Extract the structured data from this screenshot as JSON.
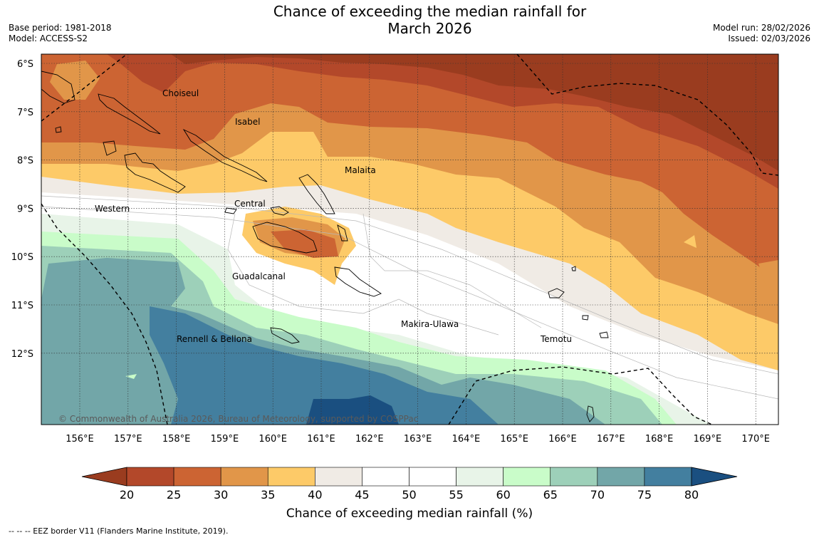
{
  "title": {
    "line1": "Chance of exceeding the median rainfall for",
    "line2": "March 2026"
  },
  "meta_left": {
    "base_period": "Base period: 1981-2018",
    "model": "Model: ACCESS-S2"
  },
  "meta_right": {
    "model_run": "Model run: 28/02/2026",
    "issued": "Issued: 02/03/2026"
  },
  "lat_labels": [
    "6°S",
    "7°S",
    "8°S",
    "9°S",
    "10°S",
    "11°S",
    "12°S"
  ],
  "lon_labels": [
    "156°E",
    "157°E",
    "158°E",
    "159°E",
    "160°E",
    "161°E",
    "162°E",
    "163°E",
    "164°E",
    "165°E",
    "166°E",
    "167°E",
    "168°E",
    "169°E",
    "170°E"
  ],
  "places": {
    "choiseul": "Choiseul",
    "isabel": "Isabel",
    "malaita": "Malaita",
    "western": "Western",
    "central": "Central",
    "guadalcanal": "Guadalcanal",
    "makira": "Makira-Ulawa",
    "rennell": "Rennell & Bellona",
    "temotu": "Temotu"
  },
  "copyright": "© Commonwealth of Australia 2026, Bureau of Meteorology, supported by COSPPac",
  "legend": {
    "label": "Chance of exceeding median rainfall (%)",
    "ticks": [
      "20",
      "25",
      "30",
      "35",
      "40",
      "45",
      "50",
      "55",
      "60",
      "65",
      "70",
      "75",
      "80"
    ],
    "colors": [
      "#9a3c1f",
      "#b3482a",
      "#cc6433",
      "#e19649",
      "#fdca68",
      "#f0ebe5",
      "#ffffff",
      "#ffffff",
      "#e8f4e8",
      "#c9fcc9",
      "#9dd0b9",
      "#72a6a8",
      "#437f9f",
      "#1a4f80"
    ]
  },
  "footer": "--  --  -- EEZ border V11 (Flanders Marine Institute, 2019)."
}
